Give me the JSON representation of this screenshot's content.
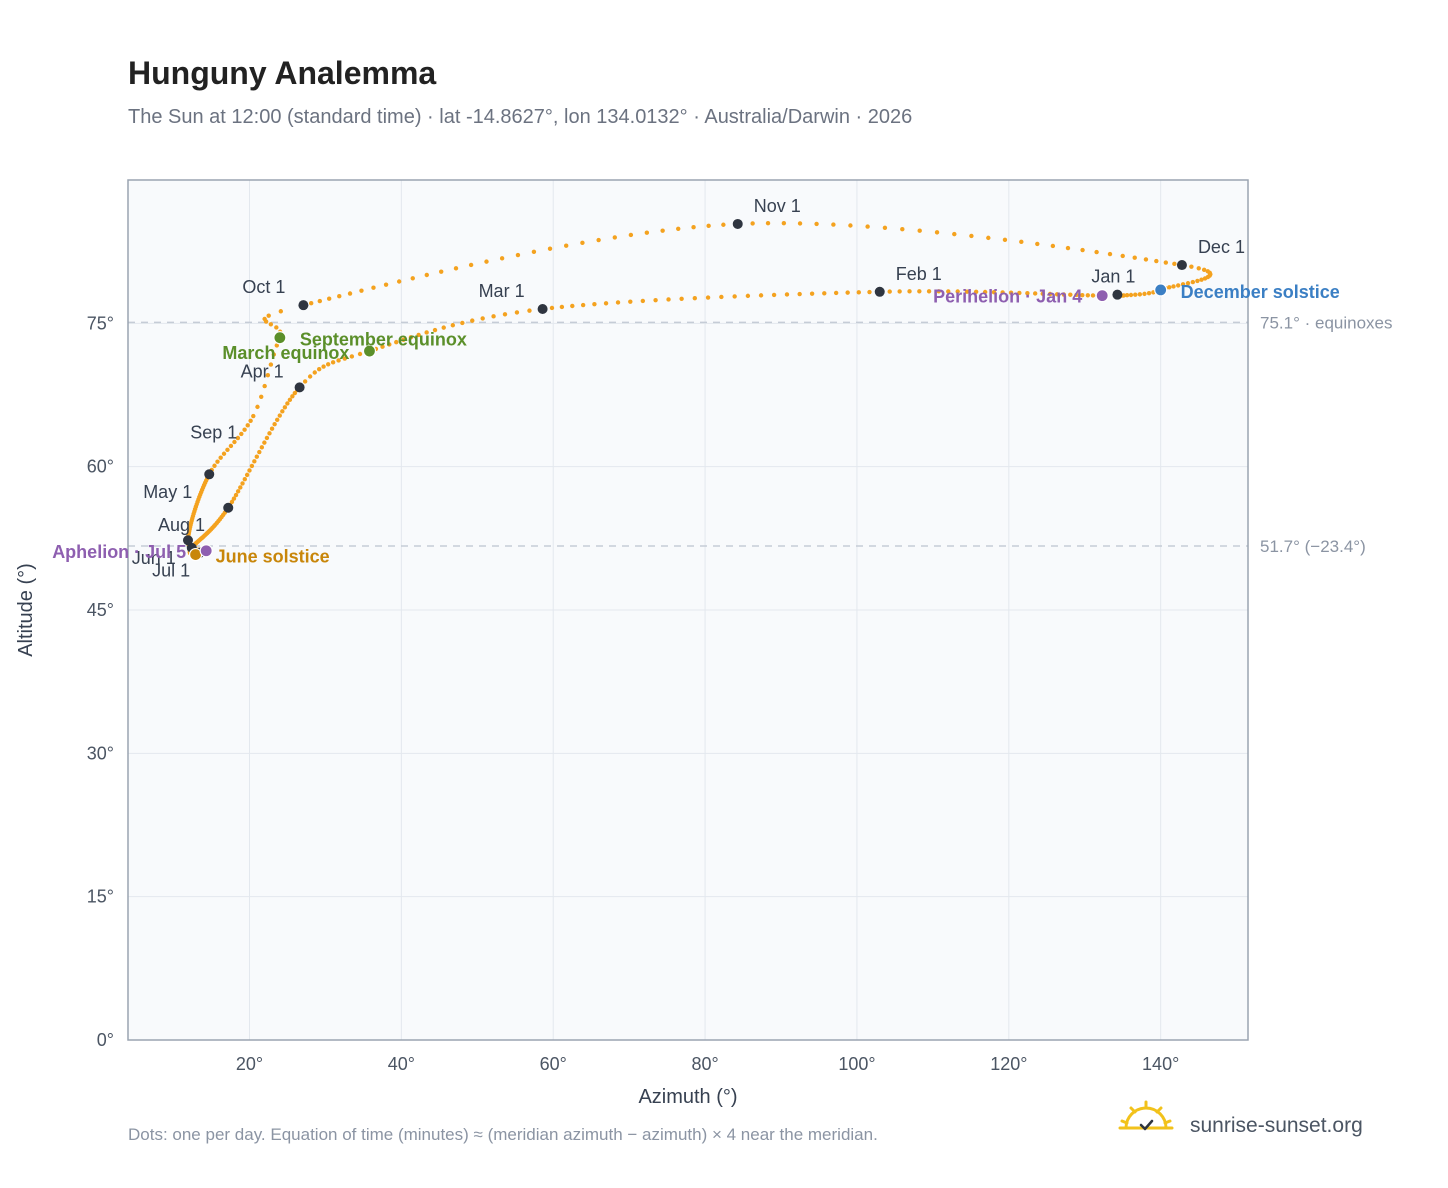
{
  "title": "Hunguny Analemma",
  "subtitle": "The Sun at 12:00 (standard time) · lat -14.8627°, lon 134.0132° · Australia/Darwin · 2026",
  "footnote": "Dots: one per day. Equation of time (minutes) ≈ (meridian azimuth − azimuth) × 4 near the meridian.",
  "brand": {
    "name": "sunrise-sunset.org",
    "icon": "sun-logo-icon"
  },
  "colors": {
    "curve": "#f4a21f",
    "month_marker": "#2f3540",
    "equinox": "#5b8f2a",
    "june_solstice": "#c8860a",
    "december_solstice": "#3b7fc4",
    "apsis": "#8e5fb0",
    "plot_bg": "#f8fafc",
    "grid": "#e3e8ee",
    "frame": "#9aa4b1",
    "ref_line": "#c5ccd6"
  },
  "chart_data": {
    "type": "scatter",
    "xlabel": "Azimuth (°)",
    "ylabel": "Altitude (°)",
    "xlim": [
      4,
      151.5
    ],
    "ylim": [
      0,
      90
    ],
    "x_ticks": [
      {
        "value": 20,
        "label": "20°"
      },
      {
        "value": 40,
        "label": "40°"
      },
      {
        "value": 60,
        "label": "60°"
      },
      {
        "value": 80,
        "label": "80°"
      },
      {
        "value": 100,
        "label": "100°"
      },
      {
        "value": 120,
        "label": "120°"
      },
      {
        "value": 140,
        "label": "140°"
      }
    ],
    "y_ticks": [
      {
        "value": 0,
        "label": "0°"
      },
      {
        "value": 15,
        "label": "15°"
      },
      {
        "value": 30,
        "label": "30°"
      },
      {
        "value": 45,
        "label": "45°"
      },
      {
        "value": 60,
        "label": "60°"
      },
      {
        "value": 75,
        "label": "75°"
      }
    ],
    "grid": true,
    "reference_lines": [
      {
        "y": 75.1,
        "label": "75.1° · equinoxes"
      },
      {
        "y": 51.7,
        "label": "51.7° (−23.4°)"
      }
    ],
    "keypoints": [
      {
        "date": "Jan 1",
        "x": 134.3,
        "y": 78.0
      },
      {
        "date": "Jan 4",
        "x": 132.3,
        "y": 77.9
      },
      {
        "date": "Feb 1",
        "x": 103.0,
        "y": 78.3
      },
      {
        "date": "Mar 1",
        "x": 58.6,
        "y": 76.5
      },
      {
        "date": "Mar 20",
        "x": 35.8,
        "y": 72.1
      },
      {
        "date": "Apr 1",
        "x": 26.6,
        "y": 68.3
      },
      {
        "date": "May 1",
        "x": 17.2,
        "y": 55.7
      },
      {
        "date": "Jun 1",
        "x": 12.4,
        "y": 51.5
      },
      {
        "date": "Jun 21",
        "x": 12.9,
        "y": 50.8
      },
      {
        "date": "Jul 1",
        "x": 13.5,
        "y": 51.0
      },
      {
        "date": "Jul 5",
        "x": 14.3,
        "y": 51.2
      },
      {
        "date": "Aug 1",
        "x": 11.9,
        "y": 52.3
      },
      {
        "date": "Sep 1",
        "x": 14.7,
        "y": 59.2
      },
      {
        "date": "Sep 15",
        "x": 20.5,
        "y": 65.3
      },
      {
        "date": "Sep 23",
        "x": 24.0,
        "y": 73.5
      },
      {
        "date": "Oct 1",
        "x": 27.1,
        "y": 76.9
      },
      {
        "date": "Nov 1",
        "x": 84.3,
        "y": 85.4
      },
      {
        "date": "Dec 1",
        "x": 142.8,
        "y": 81.1
      },
      {
        "date": "Dec 21",
        "x": 140.0,
        "y": 78.5
      },
      {
        "date": "Dec 31",
        "x": 134.8,
        "y": 77.9
      }
    ],
    "month_markers": [
      {
        "label": "Jan 1",
        "x": 134.3,
        "y": 78.0,
        "anchor": "end",
        "dx": 18,
        "dy": -12
      },
      {
        "label": "Feb 1",
        "x": 103.0,
        "y": 78.3,
        "anchor": "start",
        "dx": 16,
        "dy": -12
      },
      {
        "label": "Mar 1",
        "x": 58.6,
        "y": 76.5,
        "anchor": "end",
        "dx": -18,
        "dy": -12
      },
      {
        "label": "Apr 1",
        "x": 26.6,
        "y": 68.3,
        "anchor": "end",
        "dx": -16,
        "dy": -10
      },
      {
        "label": "May 1",
        "x": 17.2,
        "y": 55.7,
        "anchor": "end",
        "dx": -36,
        "dy": -10
      },
      {
        "label": "Jun 1",
        "x": 12.4,
        "y": 51.5,
        "anchor": "end",
        "dx": -16,
        "dy": 16
      },
      {
        "label": "Jul 1",
        "x": 13.5,
        "y": 51.0,
        "anchor": "end",
        "dx": -10,
        "dy": 24
      },
      {
        "label": "Aug 1",
        "x": 11.9,
        "y": 52.3,
        "anchor": "start",
        "dx": -30,
        "dy": -9
      },
      {
        "label": "Sep 1",
        "x": 14.7,
        "y": 59.2,
        "anchor": "end",
        "dx": 28,
        "dy": -36
      },
      {
        "label": "Oct 1",
        "x": 27.1,
        "y": 76.9,
        "anchor": "end",
        "dx": -18,
        "dy": -12
      },
      {
        "label": "Nov 1",
        "x": 84.3,
        "y": 85.4,
        "anchor": "start",
        "dx": 16,
        "dy": -12
      },
      {
        "label": "Dec 1",
        "x": 142.8,
        "y": 81.1,
        "anchor": "start",
        "dx": 16,
        "dy": -12
      }
    ],
    "events": [
      {
        "label": "March equinox",
        "x": 35.8,
        "y": 72.1,
        "kind": "equinox",
        "anchor": "end",
        "dx": -20,
        "dy": 8
      },
      {
        "label": "September equinox",
        "x": 24.0,
        "y": 73.5,
        "kind": "equinox",
        "anchor": "start",
        "dx": 20,
        "dy": 8
      },
      {
        "label": "June solstice",
        "x": 12.9,
        "y": 50.8,
        "kind": "june_solstice",
        "anchor": "start",
        "dx": 20,
        "dy": 8
      },
      {
        "label": "December solstice",
        "x": 140.0,
        "y": 78.5,
        "kind": "december_solstice",
        "anchor": "start",
        "dx": 20,
        "dy": 8
      },
      {
        "label": "Perihelion · Jan 4",
        "x": 132.3,
        "y": 77.9,
        "kind": "apsis",
        "anchor": "end",
        "dx": -20,
        "dy": 7
      },
      {
        "label": "Aphelion · Jul 5",
        "x": 14.3,
        "y": 51.2,
        "kind": "apsis",
        "anchor": "end",
        "dx": -20,
        "dy": 7
      }
    ]
  }
}
